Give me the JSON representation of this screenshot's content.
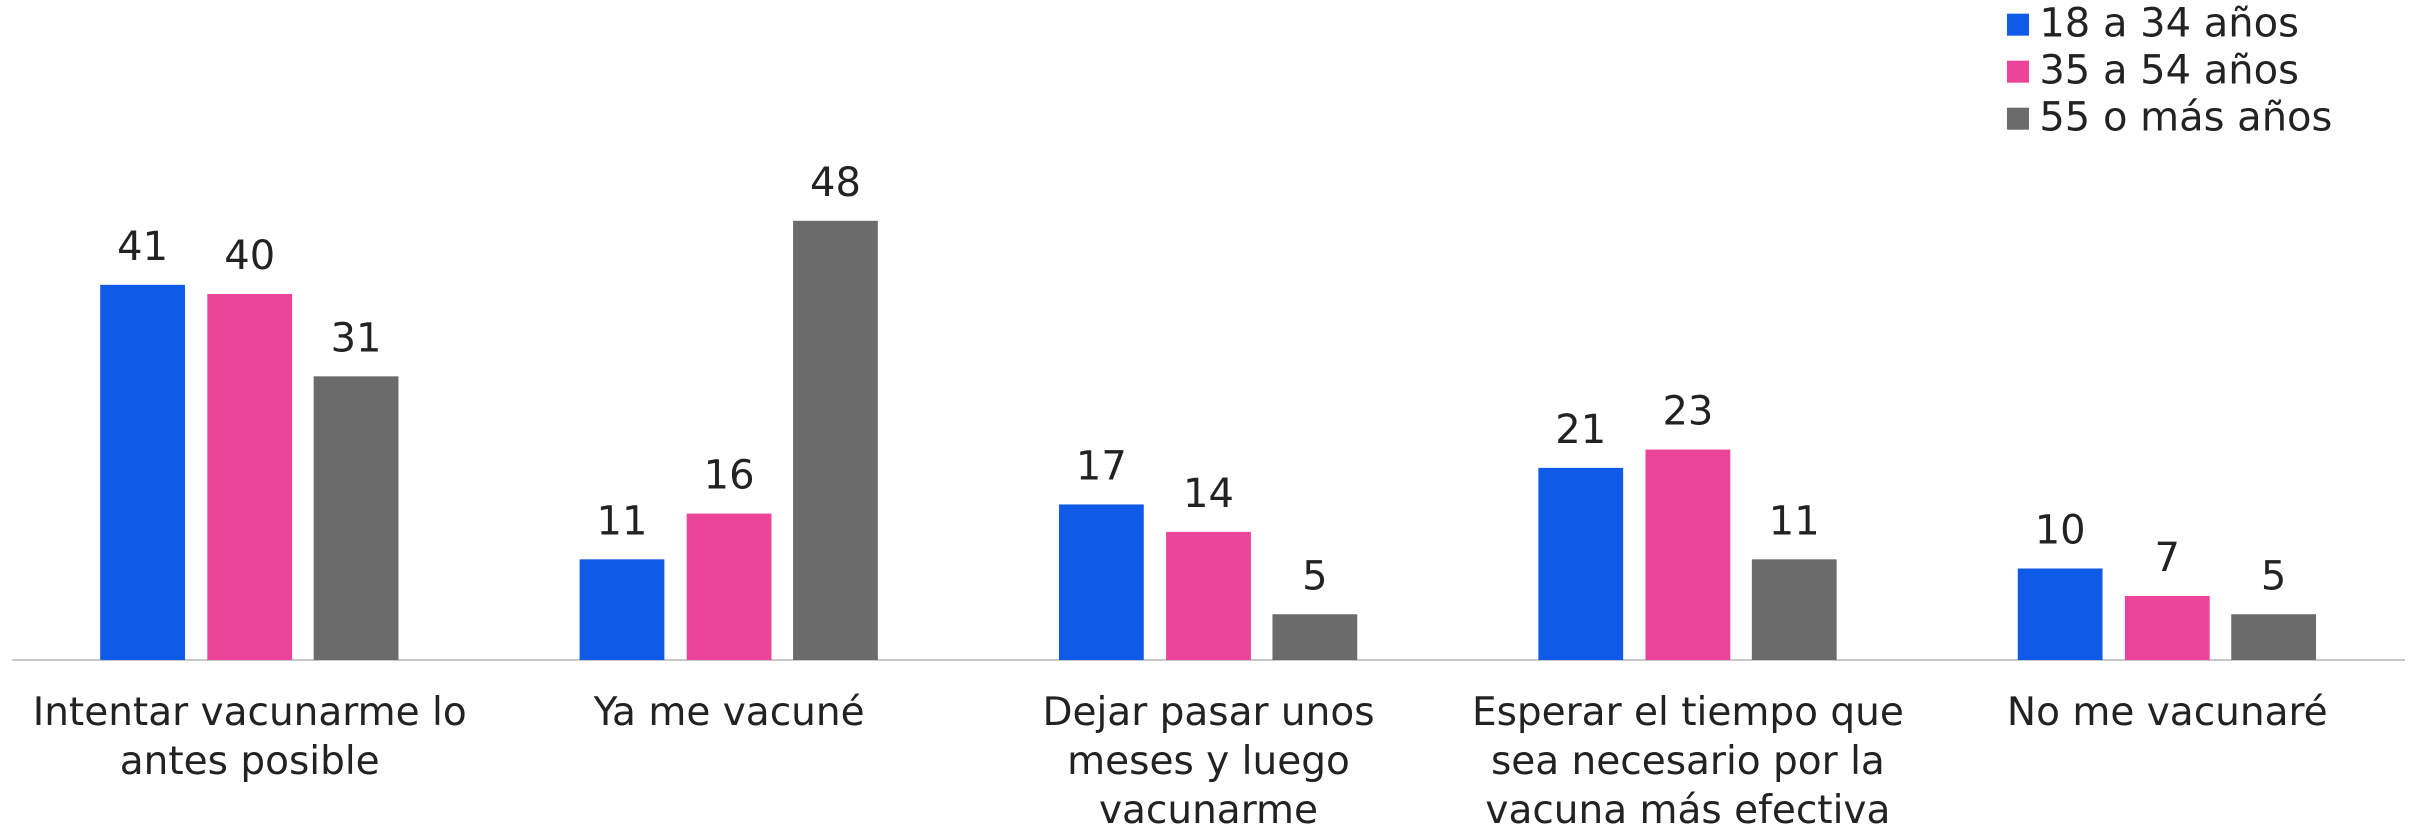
{
  "chart_data": {
    "type": "bar",
    "categories": [
      "Intentar vacunarme lo antes posible",
      "Ya me vacuné",
      "Dejar pasar unos meses y luego vacunarme",
      "Esperar el tiempo que sea necesario por la vacuna más efectiva",
      "No me vacunaré"
    ],
    "series": [
      {
        "name": "18 a 34 años",
        "color": "#0f5ae6",
        "values": [
          41,
          11,
          17,
          21,
          10
        ]
      },
      {
        "name": "35 a 54 años",
        "color": "#ec4499",
        "values": [
          40,
          16,
          14,
          23,
          7
        ]
      },
      {
        "name": "55 o más años",
        "color": "#6b6b6b",
        "values": [
          31,
          48,
          5,
          11,
          5
        ]
      }
    ],
    "legend": "top-right"
  }
}
